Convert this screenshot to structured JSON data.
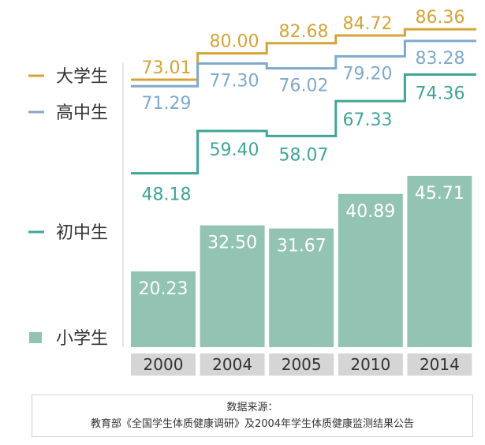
{
  "chart_data": {
    "type": "bar",
    "categories": [
      "2000",
      "2004",
      "2005",
      "2010",
      "2014"
    ],
    "series": [
      {
        "name": "大学生",
        "chart_type": "step-line",
        "color": "#D4A437",
        "values": [
          73.01,
          80.0,
          82.68,
          84.72,
          86.36
        ],
        "labels": [
          "73.01",
          "80.00",
          "82.68",
          "84.72",
          "86.36"
        ]
      },
      {
        "name": "高中生",
        "chart_type": "step-line",
        "color": "#7FA9CB",
        "values": [
          71.29,
          77.3,
          76.02,
          79.2,
          83.28
        ],
        "labels": [
          "71.29",
          "77.30",
          "76.02",
          "79.20",
          "83.28"
        ]
      },
      {
        "name": "初中生",
        "chart_type": "step-line",
        "color": "#3FA597",
        "values": [
          48.18,
          59.4,
          58.07,
          67.33,
          74.36
        ],
        "labels": [
          "48.18",
          "59.40",
          "58.07",
          "67.33",
          "74.36"
        ]
      },
      {
        "name": "小学生",
        "chart_type": "bar",
        "color": "#93C4B3",
        "values": [
          20.23,
          32.5,
          31.67,
          40.89,
          45.71
        ],
        "labels": [
          "20.23",
          "32.50",
          "31.67",
          "40.89",
          "45.71"
        ]
      }
    ],
    "legend_placement": "left",
    "x_axis_band_color": "#D5D5D5",
    "grid": false
  },
  "source": {
    "line1": "数据来源：",
    "line2": "教育部《全国学生体质健康调研》及2004年学生体质健康监测结果公告"
  }
}
